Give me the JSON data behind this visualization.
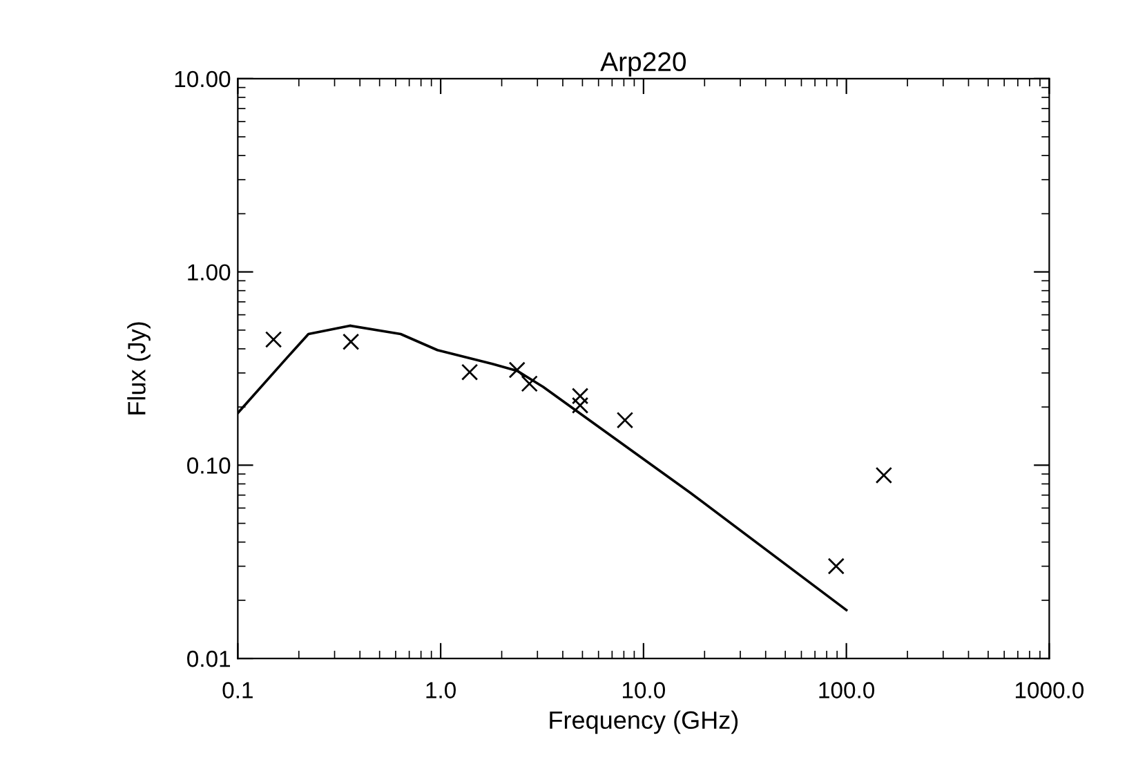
{
  "chart_data": {
    "type": "scatter",
    "title": "Arp220",
    "xlabel": "Frequency (GHz)",
    "ylabel": "Flux (Jy)",
    "log": "xy",
    "grid": false,
    "legend": false,
    "xlim": [
      0.1,
      1000
    ],
    "ylim": [
      0.01,
      10
    ],
    "xticks": [
      {
        "value": 0.1,
        "label": "0.1"
      },
      {
        "value": 1,
        "label": "1.0"
      },
      {
        "value": 10,
        "label": "10.0"
      },
      {
        "value": 100,
        "label": "100.0"
      },
      {
        "value": 1000,
        "label": "1000.0"
      }
    ],
    "yticks": [
      {
        "value": 0.01,
        "label": "0.01"
      },
      {
        "value": 0.1,
        "label": "0.10"
      },
      {
        "value": 1,
        "label": "1.00"
      },
      {
        "value": 10,
        "label": "10.00"
      }
    ],
    "series": [
      {
        "marker": "cross",
        "color": "#000000",
        "x": [
          0.15,
          0.361,
          1.39,
          2.38,
          2.74,
          4.87,
          4.87,
          8.1,
          89,
          153
        ],
        "values": [
          0.447,
          0.435,
          0.303,
          0.311,
          0.264,
          0.228,
          0.204,
          0.171,
          0.03,
          0.0887
        ]
      },
      {
        "type": "line",
        "marker": "none",
        "line_style": "solid",
        "color": "#000000",
        "x": [
          0.1,
          0.172,
          0.223,
          0.357,
          0.635,
          0.964,
          1.8,
          2.38,
          3.2,
          17.0,
          100
        ],
        "values": [
          0.186,
          0.353,
          0.477,
          0.527,
          0.477,
          0.394,
          0.334,
          0.308,
          0.254,
          0.072,
          0.0178
        ]
      }
    ]
  }
}
